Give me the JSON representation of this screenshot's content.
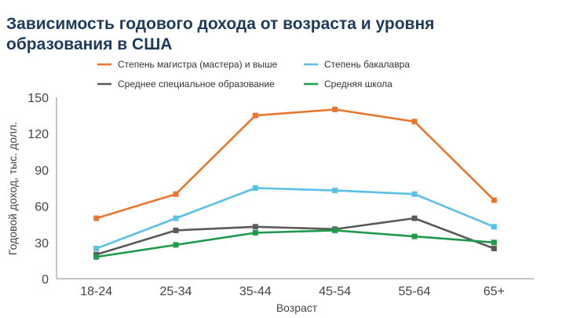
{
  "title": "Зависимость годового дохода от возраста и уровня образования в США",
  "chart_data": {
    "type": "line",
    "title": "Зависимость годового дохода от возраста и уровня образования в США",
    "xlabel": "Возраст",
    "ylabel": "Годовой доход, тыс. долл.",
    "categories": [
      "18-24",
      "25-34",
      "35-44",
      "45-54",
      "55-64",
      "65+"
    ],
    "ylim": [
      0,
      150
    ],
    "yticks": [
      0,
      30,
      60,
      90,
      120,
      150
    ],
    "grid": false,
    "legend_position": "top",
    "series": [
      {
        "name": "Степень магистра (мастера) и выше",
        "color": "#e8762d",
        "values": [
          50,
          70,
          135,
          140,
          130,
          65
        ]
      },
      {
        "name": "Степень бакалавра",
        "color": "#5bc0e6",
        "values": [
          25,
          50,
          75,
          73,
          70,
          43
        ]
      },
      {
        "name": "Среднее специальное образование",
        "color": "#5a5a5a",
        "values": [
          20,
          40,
          43,
          41,
          50,
          25
        ]
      },
      {
        "name": "Средняя школа",
        "color": "#1f9a4b",
        "values": [
          18,
          28,
          38,
          40,
          35,
          30
        ]
      }
    ]
  }
}
